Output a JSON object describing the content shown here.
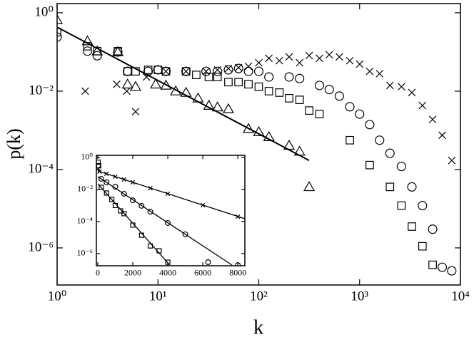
{
  "chart_data": [
    {
      "type": "scatter",
      "xlabel": "k",
      "ylabel": "p(k)",
      "xscale": "log",
      "yscale": "log",
      "xlim": [
        1,
        10000
      ],
      "ylim": [
        1.13e-07,
        1.72
      ],
      "xticks": [
        {
          "value": 1,
          "label": "10⁰"
        },
        {
          "value": 10,
          "label": "10¹"
        },
        {
          "value": 100,
          "label": "10²"
        },
        {
          "value": 1000,
          "label": "10³"
        },
        {
          "value": 10000,
          "label": "10⁴"
        }
      ],
      "yticks": [
        {
          "value": 1,
          "label": "10⁰"
        },
        {
          "value": 0.01,
          "label": "10⁻²"
        },
        {
          "value": 0.0001,
          "label": "10⁻⁴"
        },
        {
          "value": 1e-06,
          "label": "10⁻⁶"
        }
      ],
      "series": [
        {
          "marker": "triangle",
          "color": "#000000",
          "x": [
            1,
            2,
            2.5,
            4,
            5,
            6,
            9.5,
            12,
            15,
            19,
            25,
            32,
            39,
            50,
            79,
            100,
            126,
            200,
            254,
            316
          ],
          "values": [
            0.66,
            0.19,
            0.105,
            0.1,
            0.015,
            0.013,
            0.015,
            0.014,
            0.01,
            0.0092,
            0.0066,
            0.0043,
            0.0039,
            0.0035,
            0.0011,
            0.00091,
            0.00068,
            0.00041,
            0.00029,
            3.6e-05
          ]
        },
        {
          "marker": "square",
          "color": "#000000",
          "x": [
            1,
            2,
            2.5,
            4,
            5,
            6,
            8,
            10,
            12,
            19,
            24,
            32,
            39,
            50,
            63,
            79,
            100,
            126,
            160,
            200,
            254,
            316,
            400,
            800,
            1260,
            2000,
            2600,
            3300,
            4200,
            5300
          ],
          "values": [
            0.32,
            0.14,
            0.105,
            0.105,
            0.032,
            0.032,
            0.035,
            0.035,
            0.032,
            0.032,
            0.026,
            0.023,
            0.023,
            0.017,
            0.017,
            0.015,
            0.013,
            0.01,
            0.0092,
            0.0066,
            0.006,
            0.0032,
            0.0026,
            0.00056,
            0.00013,
            3.6e-05,
            1.2e-05,
            3.5e-06,
            1.1e-06,
            3.7e-07
          ]
        },
        {
          "marker": "circle",
          "color": "#000000",
          "x": [
            1,
            2,
            2.5,
            4,
            5,
            8,
            10,
            12,
            19,
            30,
            39,
            50,
            63,
            79,
            100,
            126,
            200,
            254,
            400,
            500,
            630,
            800,
            1000,
            1260,
            1580,
            2000,
            2600,
            3300,
            4200,
            5300,
            6600,
            8200
          ],
          "values": [
            0.24,
            0.105,
            0.08,
            0.1,
            0.032,
            0.032,
            0.035,
            0.032,
            0.032,
            0.032,
            0.032,
            0.035,
            0.038,
            0.032,
            0.032,
            0.023,
            0.023,
            0.021,
            0.014,
            0.011,
            0.0075,
            0.004,
            0.0026,
            0.0014,
            0.00056,
            0.00026,
            0.00012,
            3.6e-05,
            1.2e-05,
            3e-06,
            3.2e-07,
            2.6e-07
          ]
        },
        {
          "marker": "x",
          "color": "#000000",
          "x": [
            1.9,
            3.9,
            4.9,
            6,
            7.7,
            12,
            19,
            30,
            39,
            50,
            63,
            79,
            100,
            126,
            160,
            200,
            254,
            316,
            400,
            500,
            630,
            800,
            1000,
            1260,
            1580,
            2000,
            2600,
            3300,
            4200,
            5300,
            6600,
            8200
          ],
          "values": [
            0.01,
            0.015,
            0.01,
            0.003,
            0.023,
            0.032,
            0.032,
            0.032,
            0.035,
            0.038,
            0.04,
            0.043,
            0.053,
            0.069,
            0.06,
            0.075,
            0.053,
            0.081,
            0.069,
            0.085,
            0.075,
            0.06,
            0.049,
            0.032,
            0.028,
            0.014,
            0.013,
            0.0092,
            0.0043,
            0.0019,
            0.00075,
            0.00017
          ]
        },
        {
          "marker": "line",
          "color": "#000000",
          "x": [
            1,
            316
          ],
          "values": [
            0.43,
            0.00017
          ]
        }
      ]
    },
    {
      "type": "scatter",
      "xscale": "linear",
      "yscale": "log",
      "xlim": [
        -80,
        8400
      ],
      "ylim": [
        1.74e-07,
        1.35
      ],
      "xticks": [
        0,
        2000,
        4000,
        6000,
        8000
      ],
      "yticks": [
        {
          "value": 1,
          "label": "10⁰"
        },
        {
          "value": 0.01,
          "label": "10⁻²"
        },
        {
          "value": 0.0001,
          "label": "10⁻⁴"
        },
        {
          "value": 1e-06,
          "label": "10⁻⁶"
        }
      ],
      "series": [
        {
          "marker": "square",
          "color": "#000000",
          "x": [
            20,
            50,
            200,
            500,
            800,
            1000,
            1300,
            1500,
            2000,
            2500,
            3000,
            3500,
            4000
          ],
          "values": [
            0.5,
            0.3,
            0.0136,
            0.006,
            0.0024,
            0.001,
            0.00046,
            0.00031,
            6e-05,
            1.4e-05,
            3e-06,
            1.5e-06,
            2.9e-07
          ]
        },
        {
          "marker": "circle",
          "color": "#000000",
          "x": [
            20,
            200,
            500,
            1000,
            1500,
            2000,
            2500,
            3000,
            4000,
            5000,
            6300,
            8000
          ],
          "values": [
            0.3,
            0.046,
            0.028,
            0.015,
            0.0054,
            0.0021,
            0.00095,
            0.00041,
            8.1e-05,
            1.6e-05,
            2.9e-07,
            1.9e-07
          ]
        },
        {
          "marker": "x",
          "color": "#000000",
          "x": [
            20,
            100,
            500,
            1000,
            1500,
            2000,
            3000,
            4000,
            6000,
            8000
          ],
          "values": [
            0.2,
            0.132,
            0.095,
            0.063,
            0.042,
            0.028,
            0.012,
            0.0054,
            0.00105,
            0.0002
          ]
        },
        {
          "marker": "line",
          "color": "#000000",
          "x": [
            0,
            8400
          ],
          "values": [
            0.143,
            0.00015
          ]
        },
        {
          "marker": "line",
          "color": "#000000",
          "x": [
            0,
            7673
          ],
          "values": [
            0.063,
            1.9e-07
          ]
        },
        {
          "marker": "line",
          "color": "#000000",
          "x": [
            0,
            4100
          ],
          "values": [
            0.023,
            2e-07
          ]
        }
      ]
    }
  ]
}
